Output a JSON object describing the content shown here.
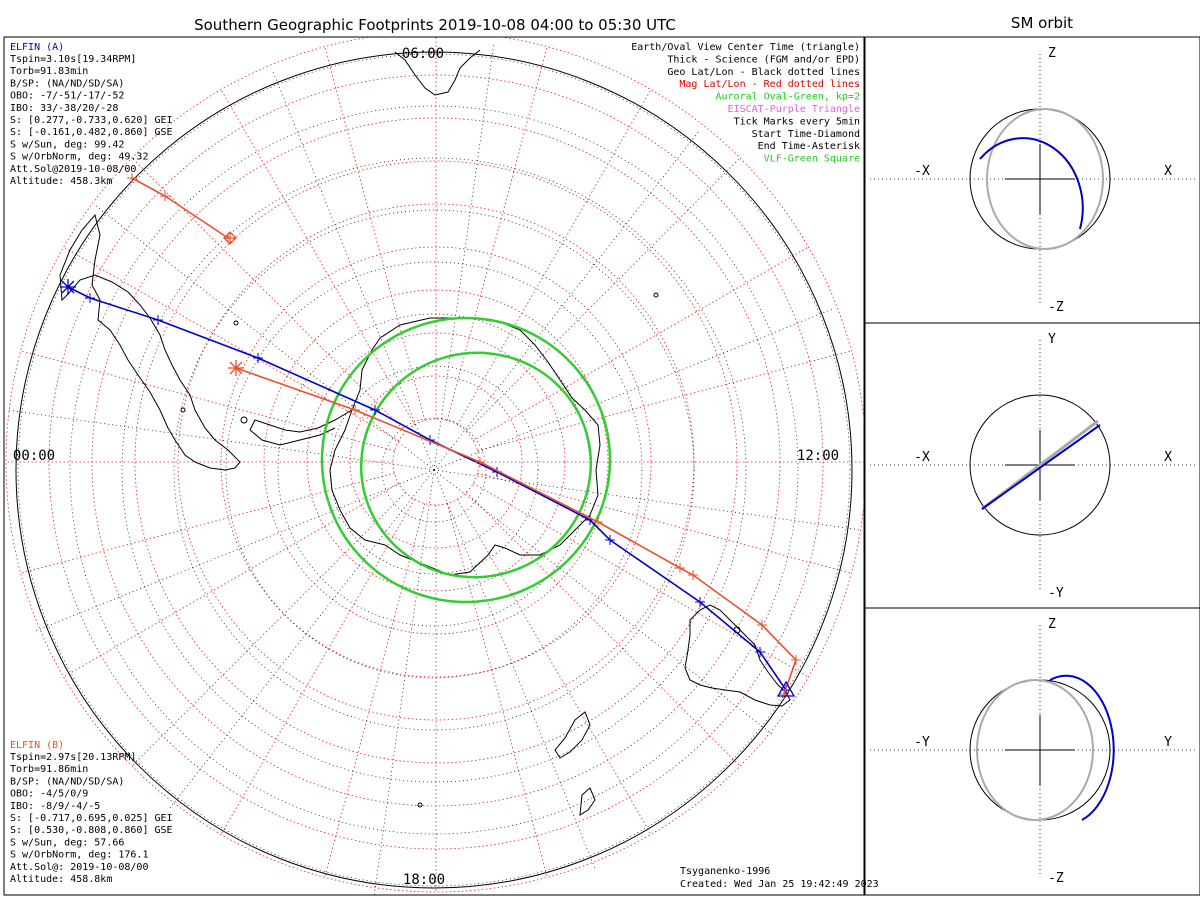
{
  "title": "Southern Geographic Footprints 2019-10-08 04:00 to 05:30 UTC",
  "orbit_title": "SM orbit",
  "map": {
    "time_labels": {
      "top": "06:00",
      "left": "00:00",
      "right": "12:00",
      "bottom": "18:00"
    },
    "model": "Tsyganenko-1996",
    "created": "Created: Wed Jan 25 19:42:49 2023"
  },
  "elfin_a": {
    "name": "ELFIN (A)",
    "color": "#0000cc",
    "lines": [
      "Tspin=3.10s[19.34RPM]",
      "Torb=91.83min",
      "B/SP: (NA/ND/SD/SA)",
      "OBO: -7/-51/-17/-52",
      "IBO: 33/-38/20/-28",
      "S: [0.277,-0.733,0.620] GEI",
      "S: [-0.161,0.482,0.860] GSE",
      "S w/Sun, deg: 99.42",
      "S w/OrbNorm, deg: 49.32",
      "Att.Sol@2019-10-08/00",
      "Altitude: 458.3km"
    ]
  },
  "elfin_b": {
    "name": "ELFIN (B)",
    "color": "#e8502a",
    "lines": [
      "Tspin=2.97s[20.13RPM]",
      "Torb=91.86min",
      "B/SP: (NA/ND/SD/SA)",
      "OBO: -4/5/0/9",
      "IBO: -8/9/-4/-5",
      "S: [-0.717,0.695,0.025] GEI",
      "S: [0.530,-0.808,0.860] GSE",
      "S w/Sun, deg: 57.66",
      "S w/OrbNorm, deg: 176.1",
      "Att.Sol@: 2019-10-08/00",
      "Altitude: 458.8km"
    ]
  },
  "legend": [
    {
      "text": "Earth/Oval View Center Time (triangle)",
      "color": "#000000"
    },
    {
      "text": "Thick - Science (FGM and/or EPD)",
      "color": "#000000"
    },
    {
      "text": "Geo Lat/Lon - Black dotted lines",
      "color": "#000000"
    },
    {
      "text": "Mag Lat/Lon - Red dotted lines",
      "color": "#dd0000"
    },
    {
      "text": "Auroral Oval-Green, kp=2",
      "color": "#22cc22"
    },
    {
      "text": "EISCAT-Purple Triangle",
      "color": "#dd66dd"
    },
    {
      "text": "Tick Marks every 5min",
      "color": "#000000"
    },
    {
      "text": "Start Time-Diamond",
      "color": "#000000"
    },
    {
      "text": "End Time-Asterisk",
      "color": "#000000"
    },
    {
      "text": "VLF-Green Square",
      "color": "#22cc22"
    }
  ],
  "orbit_panels": [
    {
      "top": "Z",
      "bottom": "-Z",
      "left": "-X",
      "right": "X"
    },
    {
      "top": "Y",
      "bottom": "-Y",
      "left": "-X",
      "right": "X"
    },
    {
      "top": "Z",
      "bottom": "-Z",
      "left": "-Y",
      "right": "Y"
    }
  ],
  "colors": {
    "grid_red": "#dd2222",
    "oval": "#33cc33",
    "track_a": "#0000cc",
    "track_b": "#e8502a",
    "orbit_gray": "#aaaaaa"
  }
}
